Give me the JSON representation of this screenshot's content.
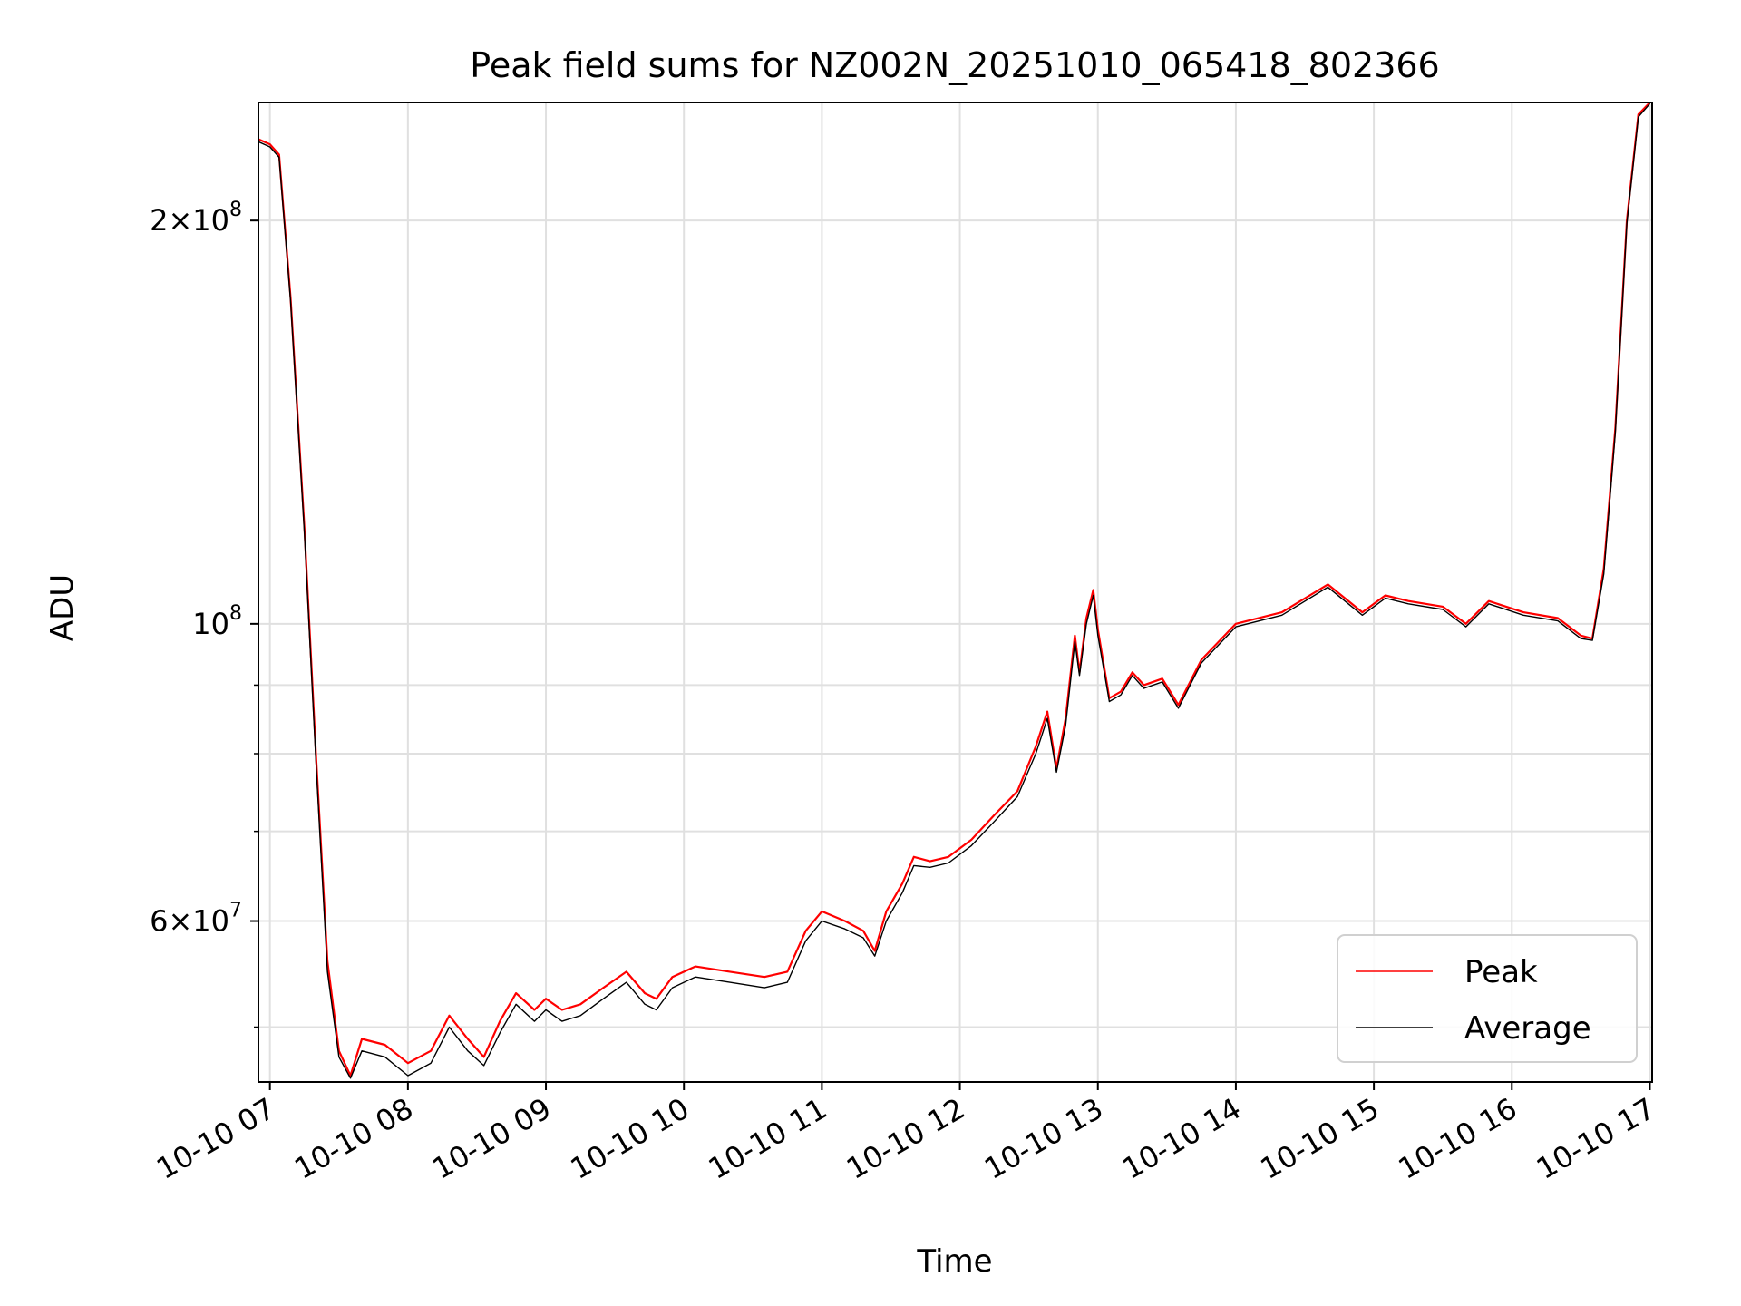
{
  "chart_data": {
    "type": "line",
    "title": "Peak field sums for NZ002N_20251010_065418_802366",
    "xlabel": "Time",
    "ylabel": "ADU",
    "y_scale": "log",
    "x_range": [
      "2025-10-10 06:55",
      "2025-10-10 17:01"
    ],
    "ylim": [
      45500000,
      245000000
    ],
    "grid": true,
    "legend_position": "lower-right",
    "x_ticks": [
      "10-10 07",
      "10-10 08",
      "10-10 09",
      "10-10 10",
      "10-10 11",
      "10-10 12",
      "10-10 13",
      "10-10 14",
      "10-10 15",
      "10-10 16",
      "10-10 17"
    ],
    "y_major_ticks": [
      {
        "value": 60000000,
        "label": "6×10^7"
      },
      {
        "value": 100000000,
        "label": "10^8"
      },
      {
        "value": 200000000,
        "label": "2×10^8"
      }
    ],
    "y_minor_ticks": [
      50000000,
      70000000,
      80000000,
      90000000
    ],
    "series": [
      {
        "name": "Peak",
        "color": "#ff0000",
        "x": [
          "2025-10-10 06:55",
          "2025-10-10 07:00",
          "2025-10-10 07:04",
          "2025-10-10 07:09",
          "2025-10-10 07:15",
          "2025-10-10 07:20",
          "2025-10-10 07:25",
          "2025-10-10 07:30",
          "2025-10-10 07:35",
          "2025-10-10 07:40",
          "2025-10-10 07:50",
          "2025-10-10 08:00",
          "2025-10-10 08:10",
          "2025-10-10 08:18",
          "2025-10-10 08:26",
          "2025-10-10 08:33",
          "2025-10-10 08:40",
          "2025-10-10 08:47",
          "2025-10-10 08:55",
          "2025-10-10 09:00",
          "2025-10-10 09:07",
          "2025-10-10 09:15",
          "2025-10-10 09:25",
          "2025-10-10 09:35",
          "2025-10-10 09:43",
          "2025-10-10 09:48",
          "2025-10-10 09:55",
          "2025-10-10 10:05",
          "2025-10-10 10:20",
          "2025-10-10 10:35",
          "2025-10-10 10:45",
          "2025-10-10 10:53",
          "2025-10-10 11:00",
          "2025-10-10 11:10",
          "2025-10-10 11:18",
          "2025-10-10 11:23",
          "2025-10-10 11:28",
          "2025-10-10 11:35",
          "2025-10-10 11:40",
          "2025-10-10 11:47",
          "2025-10-10 11:55",
          "2025-10-10 12:05",
          "2025-10-10 12:15",
          "2025-10-10 12:25",
          "2025-10-10 12:33",
          "2025-10-10 12:38",
          "2025-10-10 12:42",
          "2025-10-10 12:46",
          "2025-10-10 12:50",
          "2025-10-10 12:52",
          "2025-10-10 12:55",
          "2025-10-10 12:58",
          "2025-10-10 13:00",
          "2025-10-10 13:05",
          "2025-10-10 13:10",
          "2025-10-10 13:15",
          "2025-10-10 13:20",
          "2025-10-10 13:28",
          "2025-10-10 13:35",
          "2025-10-10 13:45",
          "2025-10-10 14:00",
          "2025-10-10 14:20",
          "2025-10-10 14:40",
          "2025-10-10 14:55",
          "2025-10-10 15:05",
          "2025-10-10 15:15",
          "2025-10-10 15:30",
          "2025-10-10 15:40",
          "2025-10-10 15:50",
          "2025-10-10 16:05",
          "2025-10-10 16:20",
          "2025-10-10 16:30",
          "2025-10-10 16:35",
          "2025-10-10 16:40",
          "2025-10-10 16:45",
          "2025-10-10 16:50",
          "2025-10-10 16:55",
          "2025-10-10 17:00"
        ],
        "values": [
          230000000,
          228000000,
          224000000,
          175000000,
          118000000,
          80000000,
          56000000,
          48000000,
          46000000,
          49000000,
          48500000,
          47000000,
          48000000,
          51000000,
          49000000,
          47500000,
          50500000,
          53000000,
          51500000,
          52500000,
          51500000,
          52000000,
          53500000,
          55000000,
          53000000,
          52500000,
          54500000,
          55500000,
          55000000,
          54500000,
          55000000,
          59000000,
          61000000,
          60000000,
          59000000,
          57000000,
          61000000,
          64000000,
          67000000,
          66500000,
          67000000,
          69000000,
          72000000,
          75000000,
          81000000,
          86000000,
          78000000,
          85000000,
          98000000,
          92000000,
          101000000,
          106000000,
          99000000,
          88000000,
          89000000,
          92000000,
          90000000,
          91000000,
          87000000,
          94000000,
          100000000,
          102000000,
          107000000,
          102000000,
          105000000,
          104000000,
          103000000,
          100000000,
          104000000,
          102000000,
          101000000,
          98000000,
          97500000,
          110000000,
          140000000,
          200000000,
          240000000,
          245000000
        ]
      },
      {
        "name": "Average",
        "color": "#000000",
        "x": [
          "2025-10-10 06:55",
          "2025-10-10 07:00",
          "2025-10-10 07:04",
          "2025-10-10 07:09",
          "2025-10-10 07:15",
          "2025-10-10 07:20",
          "2025-10-10 07:25",
          "2025-10-10 07:30",
          "2025-10-10 07:35",
          "2025-10-10 07:40",
          "2025-10-10 07:50",
          "2025-10-10 08:00",
          "2025-10-10 08:10",
          "2025-10-10 08:18",
          "2025-10-10 08:26",
          "2025-10-10 08:33",
          "2025-10-10 08:40",
          "2025-10-10 08:47",
          "2025-10-10 08:55",
          "2025-10-10 09:00",
          "2025-10-10 09:07",
          "2025-10-10 09:15",
          "2025-10-10 09:25",
          "2025-10-10 09:35",
          "2025-10-10 09:43",
          "2025-10-10 09:48",
          "2025-10-10 09:55",
          "2025-10-10 10:05",
          "2025-10-10 10:20",
          "2025-10-10 10:35",
          "2025-10-10 10:45",
          "2025-10-10 10:53",
          "2025-10-10 11:00",
          "2025-10-10 11:10",
          "2025-10-10 11:18",
          "2025-10-10 11:23",
          "2025-10-10 11:28",
          "2025-10-10 11:35",
          "2025-10-10 11:40",
          "2025-10-10 11:47",
          "2025-10-10 11:55",
          "2025-10-10 12:05",
          "2025-10-10 12:15",
          "2025-10-10 12:25",
          "2025-10-10 12:33",
          "2025-10-10 12:38",
          "2025-10-10 12:42",
          "2025-10-10 12:46",
          "2025-10-10 12:50",
          "2025-10-10 12:52",
          "2025-10-10 12:55",
          "2025-10-10 12:58",
          "2025-10-10 13:00",
          "2025-10-10 13:05",
          "2025-10-10 13:10",
          "2025-10-10 13:15",
          "2025-10-10 13:20",
          "2025-10-10 13:28",
          "2025-10-10 13:35",
          "2025-10-10 13:45",
          "2025-10-10 14:00",
          "2025-10-10 14:20",
          "2025-10-10 14:40",
          "2025-10-10 14:55",
          "2025-10-10 15:05",
          "2025-10-10 15:15",
          "2025-10-10 15:30",
          "2025-10-10 15:40",
          "2025-10-10 15:50",
          "2025-10-10 16:05",
          "2025-10-10 16:20",
          "2025-10-10 16:30",
          "2025-10-10 16:35",
          "2025-10-10 16:40",
          "2025-10-10 16:45",
          "2025-10-10 16:50",
          "2025-10-10 16:55",
          "2025-10-10 17:00"
        ],
        "values": [
          229000000,
          227000000,
          223000000,
          174000000,
          117000000,
          79000000,
          55000000,
          47500000,
          45800000,
          48000000,
          47500000,
          46000000,
          47000000,
          50000000,
          48000000,
          46800000,
          49500000,
          52000000,
          50500000,
          51500000,
          50500000,
          51000000,
          52500000,
          54000000,
          52000000,
          51500000,
          53500000,
          54500000,
          54000000,
          53500000,
          54000000,
          58000000,
          60000000,
          59200000,
          58300000,
          56500000,
          60000000,
          63000000,
          66000000,
          65800000,
          66300000,
          68300000,
          71200000,
          74300000,
          80000000,
          85000000,
          77500000,
          84000000,
          97000000,
          91500000,
          100000000,
          105000000,
          98000000,
          87500000,
          88500000,
          91500000,
          89500000,
          90500000,
          86500000,
          93500000,
          99500000,
          101500000,
          106500000,
          101500000,
          104500000,
          103500000,
          102500000,
          99500000,
          103500000,
          101500000,
          100500000,
          97500000,
          97200000,
          109000000,
          139000000,
          199000000,
          239000000,
          244500000
        ]
      }
    ]
  }
}
